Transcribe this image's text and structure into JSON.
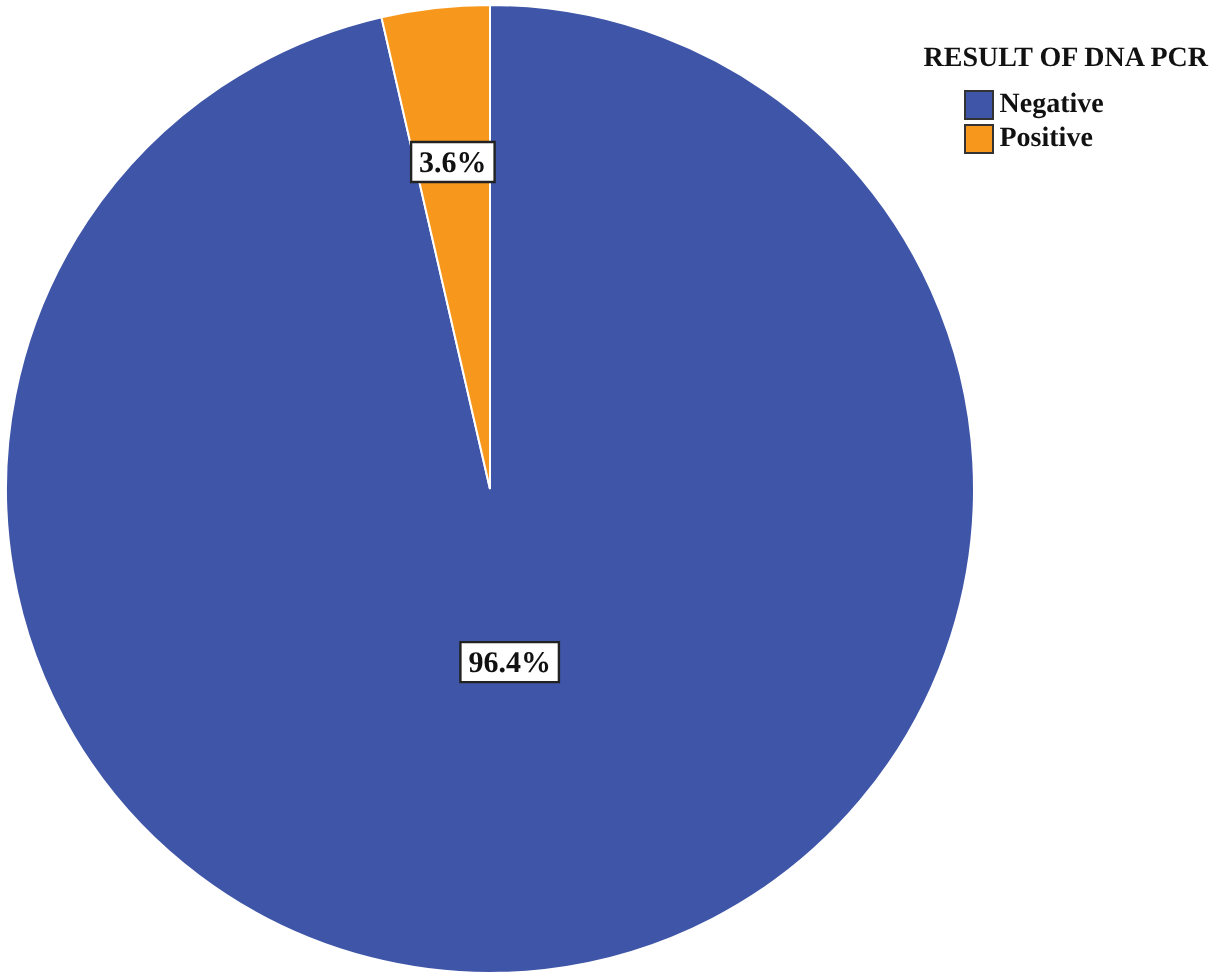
{
  "chart_data": {
    "type": "pie",
    "legend_title": "RESULT OF DNA PCR",
    "legend": "top right",
    "categories": [
      "Negative",
      "Positive"
    ],
    "values": [
      96.4,
      3.6
    ],
    "colors": [
      "#3f56a8",
      "#f7981d"
    ],
    "value_labels": [
      "96.4%",
      "3.6%"
    ]
  }
}
